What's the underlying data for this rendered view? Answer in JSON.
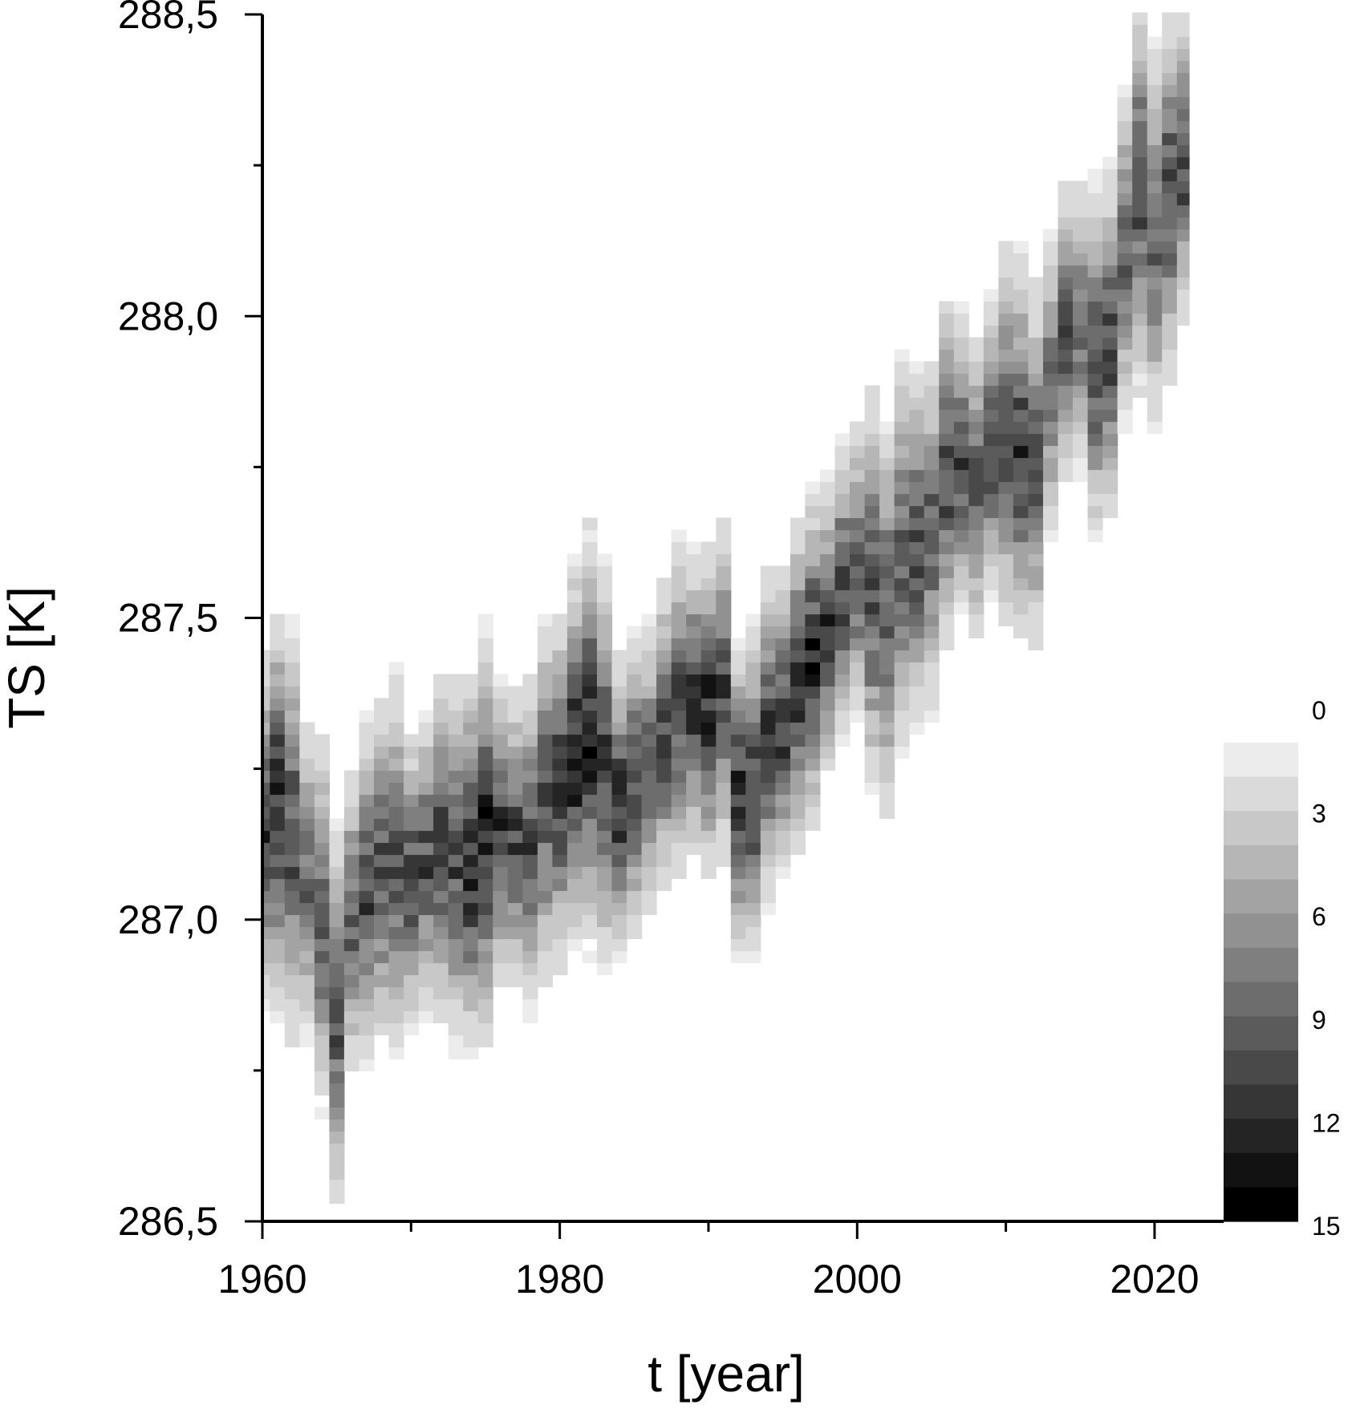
{
  "chart_data": {
    "type": "heatmap",
    "title": "",
    "xlabel": "t [year]",
    "ylabel": "TS [K]",
    "xlim": [
      1960,
      2022
    ],
    "ylim": [
      286.5,
      288.5
    ],
    "x_ticks": [
      1960,
      1980,
      2000,
      2020
    ],
    "x_tick_labels": [
      "1960",
      "1980",
      "2000",
      "2020"
    ],
    "y_ticks": [
      286.5,
      287.0,
      287.5,
      288.0,
      288.5
    ],
    "y_tick_labels": [
      "286,5",
      "287,0",
      "287,5",
      "288,0",
      "288,5"
    ],
    "colorbar": {
      "min": 0,
      "max": 15,
      "levels": 14,
      "ticks": [
        0,
        3,
        6,
        9,
        12,
        15
      ],
      "tick_labels": [
        "0",
        "3",
        "6",
        "9",
        "12",
        "15"
      ],
      "color_low": "#ececec",
      "color_high": "#000000",
      "placement": "bottom-right"
    },
    "ridge": {
      "description_points": [
        [
          1960,
          287.15
        ],
        [
          1961,
          287.18
        ],
        [
          1962,
          287.14
        ],
        [
          1963,
          287.06
        ],
        [
          1964,
          287.0
        ],
        [
          1965,
          286.85
        ],
        [
          1966,
          287.0
        ],
        [
          1967,
          287.04
        ],
        [
          1968,
          287.08
        ],
        [
          1969,
          287.09
        ],
        [
          1970,
          287.07
        ],
        [
          1971,
          287.1
        ],
        [
          1972,
          287.12
        ],
        [
          1973,
          287.1
        ],
        [
          1974,
          287.1
        ],
        [
          1975,
          287.14
        ],
        [
          1976,
          287.15
        ],
        [
          1977,
          287.13
        ],
        [
          1978,
          287.13
        ],
        [
          1979,
          287.2
        ],
        [
          1980,
          287.22
        ],
        [
          1981,
          287.27
        ],
        [
          1982,
          287.3
        ],
        [
          1983,
          287.25
        ],
        [
          1984,
          287.19
        ],
        [
          1985,
          287.22
        ],
        [
          1986,
          287.25
        ],
        [
          1987,
          287.3
        ],
        [
          1988,
          287.35
        ],
        [
          1989,
          287.36
        ],
        [
          1990,
          287.34
        ],
        [
          1991,
          287.38
        ],
        [
          1992,
          287.2
        ],
        [
          1993,
          287.22
        ],
        [
          1994,
          287.3
        ],
        [
          1995,
          287.33
        ],
        [
          1996,
          287.39
        ],
        [
          1997,
          287.43
        ],
        [
          1998,
          287.48
        ],
        [
          1999,
          287.54
        ],
        [
          2000,
          287.58
        ],
        [
          2001,
          287.55
        ],
        [
          2002,
          287.5
        ],
        [
          2003,
          287.6
        ],
        [
          2004,
          287.62
        ],
        [
          2005,
          287.64
        ],
        [
          2006,
          287.74
        ],
        [
          2007,
          287.76
        ],
        [
          2008,
          287.72
        ],
        [
          2009,
          287.78
        ],
        [
          2010,
          287.8
        ],
        [
          2011,
          287.78
        ],
        [
          2012,
          287.75
        ],
        [
          2013,
          287.88
        ],
        [
          2014,
          287.97
        ],
        [
          2015,
          287.98
        ],
        [
          2016,
          287.93
        ],
        [
          2017,
          287.95
        ],
        [
          2018,
          288.1
        ],
        [
          2019,
          288.22
        ],
        [
          2020,
          288.13
        ],
        [
          2021,
          288.2
        ],
        [
          2022,
          288.25
        ]
      ],
      "peak_density": [
        11,
        12,
        10,
        8,
        9,
        10,
        9,
        10,
        10,
        9,
        10,
        10,
        11,
        10,
        12,
        12,
        11,
        10,
        10,
        10,
        11,
        12,
        12,
        11,
        12,
        10,
        9,
        10,
        10,
        11,
        12,
        10,
        12,
        11,
        10,
        11,
        12,
        12,
        11,
        10,
        9,
        10,
        9,
        9,
        10,
        9,
        10,
        10,
        9,
        10,
        10,
        11,
        9,
        8,
        9,
        8,
        10,
        10,
        9,
        10,
        9,
        10,
        10
      ]
    }
  }
}
